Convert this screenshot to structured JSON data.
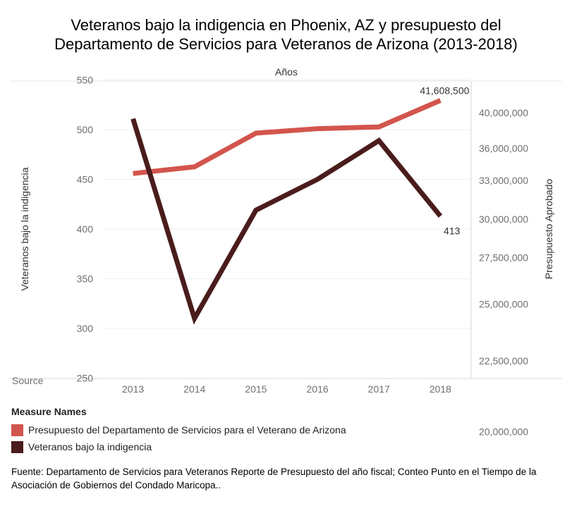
{
  "title_lines": [
    "Veteranos bajo la indigencia en Phoenix, AZ y presupuesto del",
    "Departamento de Servicios para Veteranos de Arizona (2013-2018)"
  ],
  "source_label": "Source",
  "legend": {
    "title": "Measure Names",
    "items": [
      {
        "label": "Presupuesto del Departamento de Servicios para el Veterano de Arizona",
        "color": "#d2554d"
      },
      {
        "label": "Veteranos bajo la indigencia",
        "color": "#4a1c1c"
      }
    ]
  },
  "footnote": "Fuente: Departamento de Servicios para Veteranos Reporte de Presupuesto del año fiscal; Conteo Punto en el Tiempo de la Asociación de Gobiernos del Condado Maricopa..",
  "chart_data": {
    "type": "line",
    "title": "Veteranos bajo la indigencia en Phoenix, AZ y presupuesto del Departamento de Servicios para Veteranos de Arizona (2013-2018)",
    "xlabel": "Años",
    "categories": [
      "2013",
      "2014",
      "2015",
      "2016",
      "2017",
      "2018"
    ],
    "y_left": {
      "label": "Veteranos bajo la indigencia",
      "ticks": [
        550,
        500,
        450,
        400,
        350,
        300,
        250
      ],
      "tick_labels": [
        "550",
        "500",
        "450",
        "400",
        "350",
        "300",
        "250"
      ]
    },
    "y_right": {
      "label": "Presupuesto Aprobado",
      "ticks": [
        40000000,
        36000000,
        33000000,
        30000000,
        27500000,
        25000000,
        22500000,
        20000000
      ],
      "tick_labels": [
        "40,000,000",
        "36,000,000",
        "33,000,000",
        "30,000,000",
        "27,500,000",
        "25,000,000",
        "22,500,000",
        "20,000,000"
      ],
      "scale": "reciprocal"
    },
    "series": [
      {
        "name": "Presupuesto del Departamento de Servicios para el Veterano de Arizona",
        "axis": "right",
        "color": "#d2554d",
        "values": [
          33600000,
          34200000,
          37600000,
          38100000,
          38300000,
          41608500
        ],
        "end_label": "41,608,500"
      },
      {
        "name": "Veteranos bajo la indigencia",
        "axis": "left",
        "color": "#4a1c1c",
        "values": [
          511,
          310,
          419,
          450,
          489,
          413
        ],
        "end_label": "413"
      }
    ],
    "grid": true,
    "legend_position": "bottom-left"
  }
}
